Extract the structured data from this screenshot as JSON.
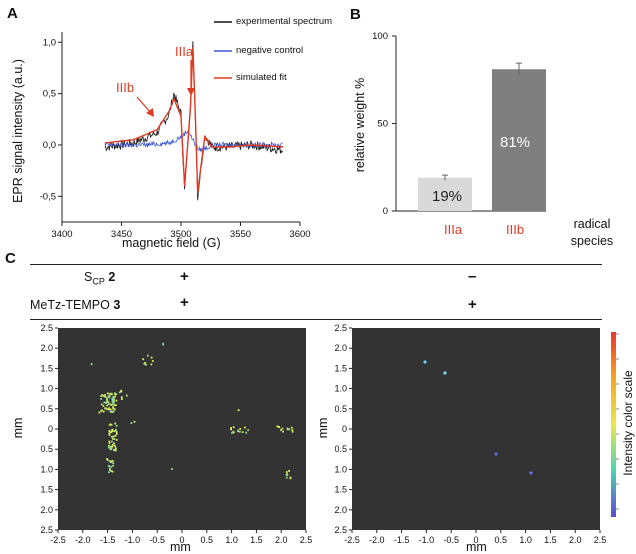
{
  "panel_a": {
    "letter": "A",
    "xlabel": "magnetic field (G)",
    "ylabel": "EPR signal intensity (a.u.)",
    "xticks": [
      "3400",
      "3450",
      "3500",
      "3550",
      "3600"
    ],
    "yticks": [
      "1,0",
      "0,5",
      "0,0",
      "-0,5"
    ],
    "legend": [
      "experimental spectrum",
      "negative control",
      "simulated fit"
    ],
    "annotations": [
      "IIIa",
      "IIIb"
    ],
    "colors": {
      "experimental": "#111111",
      "control": "#3a58d6",
      "fit": "#e03a23"
    }
  },
  "panel_b": {
    "letter": "B",
    "ylabel": "relative weight %",
    "xlabel": "radical species",
    "yticks": [
      "100",
      "50",
      "0"
    ],
    "bar_labels": [
      "19%",
      "81%"
    ]
  },
  "panel_c": {
    "letter": "C",
    "row1": {
      "name": "S",
      "sub": "CP",
      "num": "2",
      "left": "+",
      "right": "–"
    },
    "row2": {
      "name": "MeTz-TEMPO ",
      "num": "3",
      "left": "+",
      "right": "+"
    },
    "yticks": [
      "2.5",
      "2.0",
      "1.5",
      "1.0",
      "0.5",
      "0",
      "0.5",
      "1.0",
      "1.5",
      "2.0",
      "2.5"
    ],
    "xticks": [
      "-2.5",
      "-2.0",
      "-1.5",
      "-1.0",
      "-0.5",
      "0",
      "0.5",
      "1.0",
      "1.5",
      "2.0",
      "2.5"
    ],
    "axis_label": "mm",
    "colorbar_label": "Intensity color scale"
  },
  "chart_data": [
    {
      "type": "line",
      "title": "",
      "xlabel": "magnetic field (G)",
      "ylabel": "EPR signal intensity (a.u.)",
      "xlim": [
        3400,
        3600
      ],
      "ylim": [
        -0.75,
        1.1
      ],
      "series": [
        {
          "name": "experimental spectrum",
          "x": [
            3436,
            3460,
            3480,
            3490,
            3494,
            3500,
            3503,
            3505,
            3508,
            3510,
            3512,
            3514,
            3516,
            3520,
            3526,
            3540,
            3560,
            3586
          ],
          "y": [
            -0.02,
            0.02,
            0.12,
            0.3,
            0.5,
            0.3,
            -0.45,
            -0.1,
            0.4,
            0.98,
            0.3,
            -0.5,
            -0.3,
            0.1,
            -0.02,
            -0.02,
            0.0,
            -0.05
          ]
        },
        {
          "name": "negative control",
          "x": [
            3436,
            3470,
            3490,
            3500,
            3506,
            3510,
            3515,
            3520,
            3530,
            3586
          ],
          "y": [
            0.0,
            0.0,
            0.02,
            0.08,
            0.14,
            0.05,
            -0.05,
            -0.03,
            0.0,
            0.0
          ]
        },
        {
          "name": "simulated fit",
          "x": [
            3436,
            3460,
            3480,
            3490,
            3494,
            3500,
            3503,
            3505,
            3508,
            3510,
            3512,
            3514,
            3516,
            3520,
            3526,
            3540,
            3560,
            3586
          ],
          "y": [
            0.02,
            0.05,
            0.15,
            0.33,
            0.45,
            0.28,
            -0.4,
            -0.1,
            0.38,
            0.95,
            0.3,
            -0.47,
            -0.28,
            0.08,
            -0.02,
            -0.02,
            0.0,
            -0.02
          ]
        }
      ]
    },
    {
      "type": "bar",
      "categories": [
        "IIIa",
        "IIIb"
      ],
      "values": [
        19,
        81
      ],
      "ylabel": "relative weight %",
      "xlabel": "radical species",
      "ylim": [
        0,
        100
      ]
    }
  ]
}
